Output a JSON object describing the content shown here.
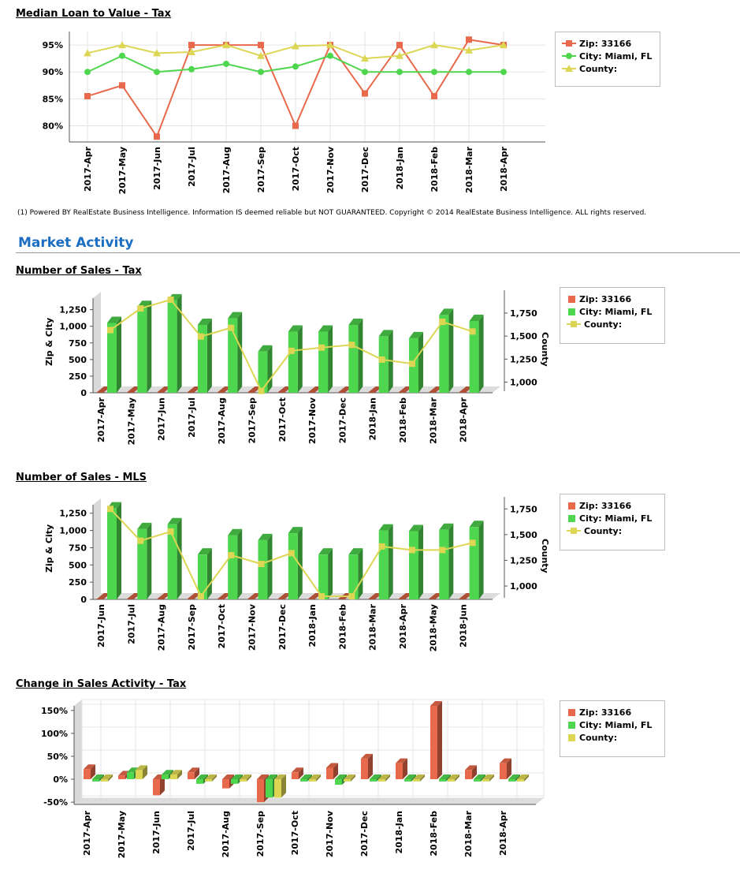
{
  "charts_meta": [
    {
      "title": "Median Loan to Value - Tax"
    },
    {
      "title": "Number of Sales - Tax",
      "left_axis_label": "Zip & City",
      "right_axis_label": "County"
    },
    {
      "title": "Number of Sales - MLS",
      "left_axis_label": "Zip & City",
      "right_axis_label": "County"
    },
    {
      "title": "Change in Sales Activity - Tax"
    }
  ],
  "legend_labels": {
    "zip": "Zip: 33166",
    "city": "City: Miami, FL",
    "county": "County:"
  },
  "colors": {
    "zip": "#e8694b",
    "city": "#4fd64f",
    "county": "#dcd654",
    "heading": "#1b6ec2"
  },
  "footnote": "(1) Powered BY RealEstate Business Intelligence. Information IS deemed reliable but NOT GUARANTEED. Copyright © 2014 RealEstate Business Intelligence. ALL rights reserved.",
  "section_heading": "Market Activity",
  "chart_data": [
    {
      "type": "line",
      "title": "Median Loan to Value - Tax",
      "categories": [
        "2017-Apr",
        "2017-May",
        "2017-Jun",
        "2017-Jul",
        "2017-Aug",
        "2017-Sep",
        "2017-Oct",
        "2017-Nov",
        "2017-Dec",
        "2018-Jan",
        "2018-Feb",
        "2018-Mar",
        "2018-Apr"
      ],
      "series": [
        {
          "name": "Zip: 33166",
          "values": [
            85.5,
            87.5,
            78.0,
            95.0,
            95.0,
            95.0,
            80.0,
            95.0,
            86.0,
            95.0,
            85.5,
            96.0,
            95.0
          ]
        },
        {
          "name": "City: Miami, FL",
          "values": [
            90.0,
            93.0,
            90.0,
            90.5,
            91.5,
            90.0,
            91.0,
            93.0,
            90.0,
            90.0,
            90.0,
            90.0,
            90.0
          ]
        },
        {
          "name": "County:",
          "values": [
            93.5,
            95.0,
            93.5,
            93.7,
            95.0,
            93.0,
            94.8,
            95.0,
            92.5,
            93.0,
            95.0,
            94.0,
            95.0
          ]
        }
      ],
      "y_ticks": [
        "95%",
        "90%",
        "85%",
        "80%"
      ],
      "ylim": [
        77,
        97.5
      ],
      "grid": true,
      "legend": "right"
    },
    {
      "type": "bar",
      "title": "Number of Sales - Tax",
      "categories": [
        "2017-Apr",
        "2017-May",
        "2017-Jun",
        "2017-Jul",
        "2017-Aug",
        "2017-Sep",
        "2017-Oct",
        "2017-Nov",
        "2017-Dec",
        "2018-Jan",
        "2018-Feb",
        "2018-Mar",
        "2018-Apr"
      ],
      "series": [
        {
          "name": "Zip: 33166",
          "axis": "left",
          "values": [
            45,
            45,
            45,
            45,
            45,
            45,
            45,
            45,
            45,
            45,
            45,
            45,
            45
          ]
        },
        {
          "name": "City: Miami, FL",
          "axis": "left",
          "values": [
            1050,
            1290,
            1390,
            1020,
            1120,
            620,
            920,
            920,
            1020,
            850,
            820,
            1170,
            1080
          ]
        },
        {
          "name": "County:",
          "axis": "right",
          "type": "line",
          "values": [
            1565,
            1800,
            1895,
            1495,
            1590,
            905,
            1340,
            1375,
            1405,
            1245,
            1200,
            1655,
            1550
          ]
        }
      ],
      "y_left_ticks": [
        "1,250",
        "1,000",
        "750",
        "500",
        "250",
        "0"
      ],
      "y_left_lim": [
        0,
        1400
      ],
      "y_right_ticks": [
        "1,750",
        "1,500",
        "1,250",
        "1,000"
      ],
      "y_right_lim": [
        885,
        1895
      ],
      "ylabel_left": "Zip & City",
      "ylabel_right": "County",
      "legend": "right"
    },
    {
      "type": "bar",
      "title": "Number of Sales - MLS",
      "categories": [
        "2017-Jun",
        "2017-Jul",
        "2017-Aug",
        "2017-Sep",
        "2017-Oct",
        "2017-Nov",
        "2017-Dec",
        "2018-Jan",
        "2018-Feb",
        "2018-Mar",
        "2018-Apr",
        "2018-May",
        "2018-Jun"
      ],
      "series": [
        {
          "name": "Zip: 33166",
          "axis": "left",
          "values": [
            45,
            45,
            45,
            45,
            45,
            45,
            45,
            45,
            45,
            45,
            45,
            45,
            45
          ]
        },
        {
          "name": "City: Miami, FL",
          "axis": "left",
          "values": [
            1320,
            1020,
            1090,
            650,
            930,
            860,
            960,
            650,
            650,
            1000,
            990,
            1010,
            1050
          ]
        },
        {
          "name": "County:",
          "axis": "right",
          "type": "line",
          "values": [
            1750,
            1440,
            1530,
            900,
            1300,
            1215,
            1320,
            900,
            900,
            1385,
            1350,
            1350,
            1420
          ]
        }
      ],
      "y_left_ticks": [
        "1,250",
        "1,000",
        "750",
        "500",
        "250",
        "0"
      ],
      "y_left_lim": [
        0,
        1350
      ],
      "y_right_ticks": [
        "1,750",
        "1,500",
        "1,250",
        "1,000"
      ],
      "y_right_lim": [
        870,
        1775
      ],
      "ylabel_left": "Zip & City",
      "ylabel_right": "County",
      "legend": "right"
    },
    {
      "type": "bar",
      "title": "Change in Sales Activity - Tax",
      "categories": [
        "2017-Apr",
        "2017-May",
        "2017-Jun",
        "2017-Jul",
        "2017-Aug",
        "2017-Sep",
        "2017-Oct",
        "2017-Nov",
        "2017-Dec",
        "2018-Jan",
        "2018-Feb",
        "2018-Mar",
        "2018-Apr"
      ],
      "series": [
        {
          "name": "Zip: 33166",
          "values": [
            22,
            8,
            -35,
            15,
            -20,
            -50,
            15,
            25,
            45,
            35,
            160,
            20,
            35
          ]
        },
        {
          "name": "City: Miami, FL",
          "values": [
            -5,
            15,
            10,
            -10,
            -10,
            -40,
            -5,
            -12,
            -5,
            -5,
            -5,
            -5,
            -5
          ]
        },
        {
          "name": "County:",
          "values": [
            -5,
            20,
            10,
            -5,
            -5,
            -40,
            -5,
            -5,
            -5,
            -5,
            -5,
            -5,
            -5
          ]
        }
      ],
      "y_ticks": [
        "150%",
        "100%",
        "50%",
        "0%",
        "-50%"
      ],
      "ylim": [
        -55,
        160
      ],
      "legend": "right"
    }
  ]
}
